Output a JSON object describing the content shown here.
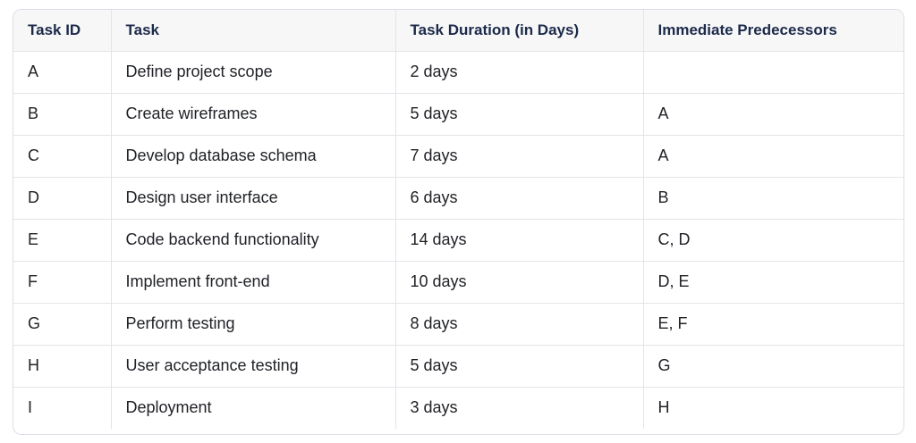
{
  "table": {
    "columns": [
      {
        "label": "Task ID"
      },
      {
        "label": "Task"
      },
      {
        "label": "Task Duration (in Days)"
      },
      {
        "label": "Immediate Predecessors"
      }
    ],
    "rows": [
      {
        "id": "A",
        "task": "Define project scope",
        "duration": "2 days",
        "predecessors": ""
      },
      {
        "id": "B",
        "task": "Create wireframes",
        "duration": "5 days",
        "predecessors": "A"
      },
      {
        "id": "C",
        "task": "Develop database schema",
        "duration": "7 days",
        "predecessors": "A"
      },
      {
        "id": "D",
        "task": "Design user interface",
        "duration": "6 days",
        "predecessors": "B"
      },
      {
        "id": "E",
        "task": "Code backend functionality",
        "duration": "14 days",
        "predecessors": "C, D"
      },
      {
        "id": "F",
        "task": "Implement front-end",
        "duration": "10 days",
        "predecessors": "D, E"
      },
      {
        "id": "G",
        "task": "Perform testing",
        "duration": "8 days",
        "predecessors": "E, F"
      },
      {
        "id": "H",
        "task": "User acceptance testing",
        "duration": "5 days",
        "predecessors": "G"
      },
      {
        "id": "I",
        "task": "Deployment",
        "duration": "3 days",
        "predecessors": "H"
      }
    ]
  },
  "colors": {
    "header_background": "#f7f7f8",
    "header_text": "#1c2a4a",
    "body_text": "#202227",
    "grid_border": "#e3e4ea",
    "outer_border": "#dcdee6",
    "page_background": "#ffffff"
  },
  "chart_data": {
    "type": "table",
    "title": "",
    "columns": [
      "Task ID",
      "Task",
      "Task Duration (in Days)",
      "Immediate Predecessors"
    ],
    "rows": [
      [
        "A",
        "Define project scope",
        "2 days",
        ""
      ],
      [
        "B",
        "Create wireframes",
        "5 days",
        "A"
      ],
      [
        "C",
        "Develop database schema",
        "7 days",
        "A"
      ],
      [
        "D",
        "Design user interface",
        "6 days",
        "B"
      ],
      [
        "E",
        "Code backend functionality",
        "14 days",
        "C, D"
      ],
      [
        "F",
        "Implement front-end",
        "10 days",
        "D, E"
      ],
      [
        "G",
        "Perform testing",
        "8 days",
        "E, F"
      ],
      [
        "H",
        "User acceptance testing",
        "5 days",
        "G"
      ],
      [
        "I",
        "Deployment",
        "3 days",
        "H"
      ]
    ]
  }
}
